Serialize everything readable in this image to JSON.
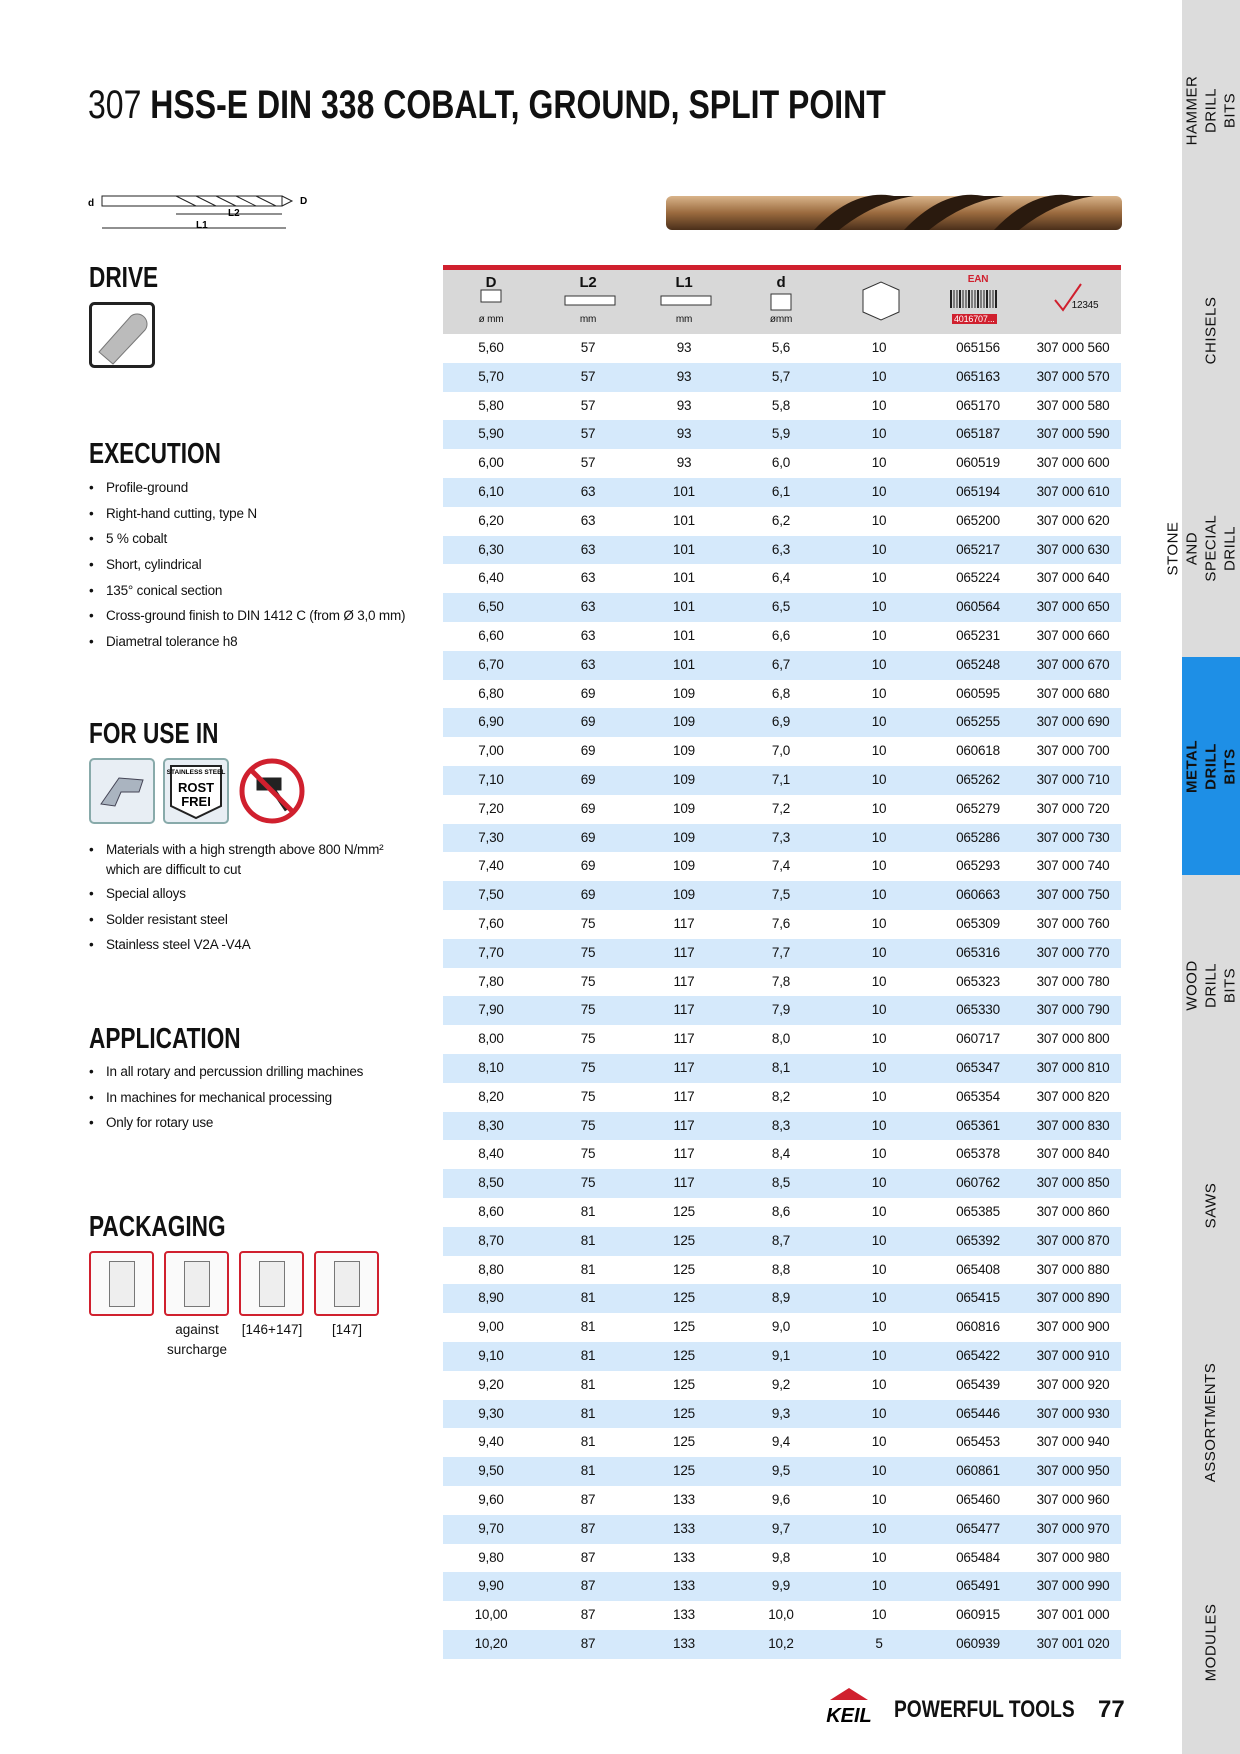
{
  "header": {
    "number": "307",
    "title": "HSS-E DIN 338 COBALT, GROUND, SPLIT POINT"
  },
  "diagram": {
    "d": "d",
    "L2": "L2",
    "L1": "L1",
    "D": "D"
  },
  "drive": {
    "heading": "DRIVE"
  },
  "execution": {
    "heading": "EXECUTION",
    "items": [
      "Profile-ground",
      "Right-hand cutting, type N",
      "5 % cobalt",
      "Short, cylindrical",
      "135° conical section",
      "Cross-ground finish to DIN 1412 C (from Ø 3,0 mm)",
      "Diametral tolerance h8"
    ]
  },
  "for_use_in": {
    "heading": "FOR USE IN",
    "icon_texts": [
      "STAINLESS STEEL",
      "ROST",
      "FREI"
    ],
    "items": [
      "Materials with a high strength above 800 N/mm² which are difficult to cut",
      "Special alloys",
      "Solder resistant steel",
      "Stainless steel V2A -V4A"
    ]
  },
  "application": {
    "heading": "APPLICATION",
    "items": [
      "In all rotary and percussion drilling machines",
      "In machines for mechanical processing",
      "Only for rotary use"
    ]
  },
  "packaging": {
    "heading": "PACKAGING",
    "captions": [
      "",
      "against surcharge",
      "[146+147]",
      "[147]"
    ]
  },
  "table": {
    "headers": [
      {
        "top": "D",
        "bottom": "ø mm"
      },
      {
        "top": "L2",
        "bottom": "mm"
      },
      {
        "top": "L1",
        "bottom": "mm"
      },
      {
        "top": "d",
        "bottom": "ømm"
      },
      {
        "top": "",
        "bottom": ""
      },
      {
        "top": "EAN",
        "bottom": "4016707..."
      },
      {
        "top": "",
        "bottom": "12345"
      }
    ],
    "rows": [
      [
        "5,60",
        "57",
        "93",
        "5,6",
        "10",
        "065156",
        "307 000 560"
      ],
      [
        "5,70",
        "57",
        "93",
        "5,7",
        "10",
        "065163",
        "307 000 570"
      ],
      [
        "5,80",
        "57",
        "93",
        "5,8",
        "10",
        "065170",
        "307 000 580"
      ],
      [
        "5,90",
        "57",
        "93",
        "5,9",
        "10",
        "065187",
        "307 000 590"
      ],
      [
        "6,00",
        "57",
        "93",
        "6,0",
        "10",
        "060519",
        "307 000 600"
      ],
      [
        "6,10",
        "63",
        "101",
        "6,1",
        "10",
        "065194",
        "307 000 610"
      ],
      [
        "6,20",
        "63",
        "101",
        "6,2",
        "10",
        "065200",
        "307 000 620"
      ],
      [
        "6,30",
        "63",
        "101",
        "6,3",
        "10",
        "065217",
        "307 000 630"
      ],
      [
        "6,40",
        "63",
        "101",
        "6,4",
        "10",
        "065224",
        "307 000 640"
      ],
      [
        "6,50",
        "63",
        "101",
        "6,5",
        "10",
        "060564",
        "307 000 650"
      ],
      [
        "6,60",
        "63",
        "101",
        "6,6",
        "10",
        "065231",
        "307 000 660"
      ],
      [
        "6,70",
        "63",
        "101",
        "6,7",
        "10",
        "065248",
        "307 000 670"
      ],
      [
        "6,80",
        "69",
        "109",
        "6,8",
        "10",
        "060595",
        "307 000 680"
      ],
      [
        "6,90",
        "69",
        "109",
        "6,9",
        "10",
        "065255",
        "307 000 690"
      ],
      [
        "7,00",
        "69",
        "109",
        "7,0",
        "10",
        "060618",
        "307 000 700"
      ],
      [
        "7,10",
        "69",
        "109",
        "7,1",
        "10",
        "065262",
        "307 000 710"
      ],
      [
        "7,20",
        "69",
        "109",
        "7,2",
        "10",
        "065279",
        "307 000 720"
      ],
      [
        "7,30",
        "69",
        "109",
        "7,3",
        "10",
        "065286",
        "307 000 730"
      ],
      [
        "7,40",
        "69",
        "109",
        "7,4",
        "10",
        "065293",
        "307 000 740"
      ],
      [
        "7,50",
        "69",
        "109",
        "7,5",
        "10",
        "060663",
        "307 000 750"
      ],
      [
        "7,60",
        "75",
        "117",
        "7,6",
        "10",
        "065309",
        "307 000 760"
      ],
      [
        "7,70",
        "75",
        "117",
        "7,7",
        "10",
        "065316",
        "307 000 770"
      ],
      [
        "7,80",
        "75",
        "117",
        "7,8",
        "10",
        "065323",
        "307 000 780"
      ],
      [
        "7,90",
        "75",
        "117",
        "7,9",
        "10",
        "065330",
        "307 000 790"
      ],
      [
        "8,00",
        "75",
        "117",
        "8,0",
        "10",
        "060717",
        "307 000 800"
      ],
      [
        "8,10",
        "75",
        "117",
        "8,1",
        "10",
        "065347",
        "307 000 810"
      ],
      [
        "8,20",
        "75",
        "117",
        "8,2",
        "10",
        "065354",
        "307 000 820"
      ],
      [
        "8,30",
        "75",
        "117",
        "8,3",
        "10",
        "065361",
        "307 000 830"
      ],
      [
        "8,40",
        "75",
        "117",
        "8,4",
        "10",
        "065378",
        "307 000 840"
      ],
      [
        "8,50",
        "75",
        "117",
        "8,5",
        "10",
        "060762",
        "307 000 850"
      ],
      [
        "8,60",
        "81",
        "125",
        "8,6",
        "10",
        "065385",
        "307 000 860"
      ],
      [
        "8,70",
        "81",
        "125",
        "8,7",
        "10",
        "065392",
        "307 000 870"
      ],
      [
        "8,80",
        "81",
        "125",
        "8,8",
        "10",
        "065408",
        "307 000 880"
      ],
      [
        "8,90",
        "81",
        "125",
        "8,9",
        "10",
        "065415",
        "307 000 890"
      ],
      [
        "9,00",
        "81",
        "125",
        "9,0",
        "10",
        "060816",
        "307 000 900"
      ],
      [
        "9,10",
        "81",
        "125",
        "9,1",
        "10",
        "065422",
        "307 000 910"
      ],
      [
        "9,20",
        "81",
        "125",
        "9,2",
        "10",
        "065439",
        "307 000 920"
      ],
      [
        "9,30",
        "81",
        "125",
        "9,3",
        "10",
        "065446",
        "307 000 930"
      ],
      [
        "9,40",
        "81",
        "125",
        "9,4",
        "10",
        "065453",
        "307 000 940"
      ],
      [
        "9,50",
        "81",
        "125",
        "9,5",
        "10",
        "060861",
        "307 000 950"
      ],
      [
        "9,60",
        "87",
        "133",
        "9,6",
        "10",
        "065460",
        "307 000 960"
      ],
      [
        "9,70",
        "87",
        "133",
        "9,7",
        "10",
        "065477",
        "307 000 970"
      ],
      [
        "9,80",
        "87",
        "133",
        "9,8",
        "10",
        "065484",
        "307 000 980"
      ],
      [
        "9,90",
        "87",
        "133",
        "9,9",
        "10",
        "065491",
        "307 000 990"
      ],
      [
        "10,00",
        "87",
        "133",
        "10,0",
        "10",
        "060915",
        "307 001 000"
      ],
      [
        "10,20",
        "87",
        "133",
        "10,2",
        "5",
        "060939",
        "307 001 020"
      ]
    ]
  },
  "sidebar": {
    "tabs": [
      "HAMMER DRILL BITS",
      "CHISELS",
      "STONE AND SPECIAL DRILL BITS",
      "METAL DRILL BITS",
      "WOOD DRILL BITS",
      "SAWS",
      "ASSORTMENTS",
      "MODULES"
    ],
    "active": 3
  },
  "footer": {
    "logo": "KEIL",
    "slogan": "POWERFUL TOOLS",
    "page": "77"
  }
}
